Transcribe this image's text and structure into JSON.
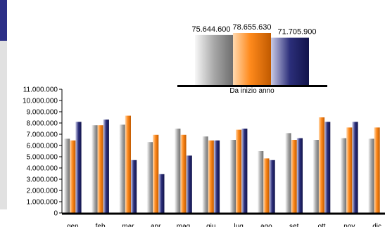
{
  "chart_data": [
    {
      "type": "bar",
      "title": "",
      "caption": "Da inizio anno",
      "categories": [
        ""
      ],
      "series": [
        {
          "values": [
            75644600
          ]
        },
        {
          "values": [
            78655630
          ]
        },
        {
          "values": [
            71705900
          ]
        }
      ],
      "data_labels": [
        "75.644.600",
        "78.655.630",
        "71.705.900"
      ],
      "colors": [
        "#b5b5b5",
        "#ff8c1a",
        "#2b2e7a"
      ]
    },
    {
      "type": "bar",
      "title": "",
      "xlabel": "",
      "ylabel": "",
      "ylim": [
        0,
        11000000
      ],
      "yticks": [
        "0",
        "1.000.000",
        "2.000.000",
        "3.000.000",
        "4.000.000",
        "5.000.000",
        "6.000.000",
        "7.000.000",
        "8.000.000",
        "9.000.000",
        "10.000.000",
        "11.000.000"
      ],
      "categories": [
        "gen",
        "feb",
        "mar",
        "apr",
        "mag",
        "giu",
        "lug",
        "ago",
        "set",
        "ott",
        "nov",
        "dic"
      ],
      "series": [
        {
          "values": [
            6600000,
            7800000,
            7850000,
            6300000,
            7500000,
            6800000,
            6500000,
            5500000,
            7100000,
            6500000,
            6650000,
            6600000
          ]
        },
        {
          "values": [
            6450000,
            7800000,
            8650000,
            6950000,
            6950000,
            6450000,
            7400000,
            4850000,
            6500000,
            8500000,
            7600000,
            7600000
          ]
        },
        {
          "values": [
            8100000,
            8300000,
            4700000,
            3450000,
            5100000,
            6450000,
            7500000,
            4700000,
            6650000,
            8100000,
            8100000,
            null
          ]
        }
      ],
      "colors": [
        "#b5b5b5",
        "#ff8c1a",
        "#2b2e7a"
      ],
      "grid": false,
      "legend": "none"
    }
  ]
}
